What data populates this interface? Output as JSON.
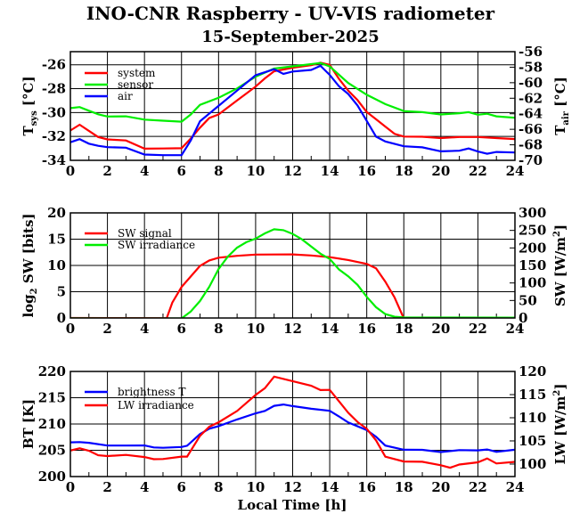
{
  "title": "INO-CNR Raspberry - UV-VIS radiometer",
  "subtitle": "15-September-2025",
  "chart_data": [
    {
      "type": "line",
      "ylabel_main": "T",
      "ylabel_sub": "sys",
      "ylabel_unit": " [°C]",
      "y2label_main": "T",
      "y2label_sub": "air",
      "y2label_unit": " [°C]",
      "xlim": [
        0,
        24
      ],
      "xticks": [
        0,
        2,
        4,
        6,
        8,
        10,
        12,
        14,
        16,
        18,
        20,
        22,
        24
      ],
      "ylim": [
        -34,
        -24.9
      ],
      "yticks": [
        -34,
        -32,
        -30,
        -28,
        -26
      ],
      "y2lim": [
        -70,
        -56
      ],
      "y2ticks": [
        -70,
        -68,
        -66,
        -64,
        -62,
        -60,
        -58,
        -56
      ],
      "series": [
        {
          "name": "system",
          "axis": "left",
          "color": "#ff0000",
          "x": [
            0,
            0.5,
            1,
            1.5,
            2,
            3,
            4,
            5,
            6,
            6.5,
            7,
            7.5,
            8,
            8.5,
            9,
            9.5,
            10,
            10.5,
            11,
            12,
            13,
            13.5,
            14,
            14.5,
            15,
            15.5,
            16,
            16.5,
            17,
            17.5,
            18,
            19,
            20,
            21,
            22,
            23,
            24
          ],
          "y": [
            -31.5,
            -31,
            -31.5,
            -32,
            -32.2,
            -32.3,
            -33,
            -33,
            -33,
            -32.2,
            -31.3,
            -30.5,
            -30.2,
            -29.6,
            -29,
            -28.4,
            -27.8,
            -27.1,
            -26.5,
            -26.2,
            -26,
            -25.8,
            -26,
            -27.2,
            -28.2,
            -29,
            -30,
            -30.6,
            -31.2,
            -31.8,
            -32,
            -32,
            -32.1,
            -32,
            -32,
            -32.1,
            -32.2
          ]
        },
        {
          "name": "sensor",
          "axis": "left",
          "color": "#00ee00",
          "x": [
            0,
            0.5,
            1,
            1.5,
            2,
            3,
            4,
            5,
            6,
            6.5,
            7,
            8,
            9,
            10,
            11,
            12,
            13,
            13.5,
            14,
            15,
            16,
            17,
            18,
            19,
            20,
            21,
            21.5,
            22,
            22.5,
            23,
            24
          ],
          "y": [
            -29.6,
            -29.5,
            -29.8,
            -30.1,
            -30.3,
            -30.3,
            -30.6,
            -30.7,
            -30.8,
            -30.2,
            -29.4,
            -28.8,
            -28,
            -27,
            -26.3,
            -26.1,
            -25.9,
            -25.8,
            -26.1,
            -27.5,
            -28.5,
            -29.3,
            -29.9,
            -30,
            -30.2,
            -30.1,
            -30.0,
            -30.2,
            -30.1,
            -30.3,
            -30.4
          ]
        },
        {
          "name": "air",
          "axis": "right",
          "color": "#0000ff",
          "x": [
            0,
            0.5,
            1,
            1.5,
            2,
            3,
            4,
            5,
            6,
            6.5,
            7,
            8,
            9,
            10,
            11,
            11.5,
            12,
            13,
            13.5,
            14,
            14.5,
            15,
            15.5,
            16,
            16.5,
            17,
            18,
            19,
            20,
            21,
            21.5,
            22,
            22.5,
            23,
            24
          ],
          "y": [
            -67.6,
            -67.2,
            -67.8,
            -68.1,
            -68.3,
            -68.4,
            -69.3,
            -69.4,
            -69.4,
            -67.5,
            -65,
            -63,
            -61,
            -59,
            -58.2,
            -58.8,
            -58.5,
            -58.3,
            -57.8,
            -59,
            -60.5,
            -61.5,
            -63,
            -65,
            -67,
            -67.6,
            -68.2,
            -68.3,
            -68.8,
            -68.7,
            -68.4,
            -68.8,
            -69.1,
            -68.9,
            -69
          ]
        }
      ]
    },
    {
      "type": "line",
      "ylabel_main": "log",
      "ylabel_sub": "2",
      "ylabel_unit": " SW [bits]",
      "y2label_main": "SW [W/m",
      "y2label_sup": "2",
      "y2label_unit": "]",
      "xlim": [
        0,
        24
      ],
      "xticks": [
        0,
        2,
        4,
        6,
        8,
        10,
        12,
        14,
        16,
        18,
        20,
        22,
        24
      ],
      "ylim": [
        0,
        20
      ],
      "yticks": [
        0,
        5,
        10,
        15,
        20
      ],
      "y2lim": [
        0,
        300
      ],
      "y2ticks": [
        0,
        50,
        100,
        150,
        200,
        250,
        300
      ],
      "series": [
        {
          "name": "SW signal",
          "axis": "left",
          "color": "#ff0000",
          "x": [
            0,
            5.2,
            5.5,
            6,
            6.5,
            7,
            7.5,
            8,
            9,
            10,
            11,
            12,
            13,
            14,
            15,
            16,
            16.5,
            17,
            17.5,
            18,
            24
          ],
          "y": [
            0,
            0,
            3,
            6,
            8,
            10,
            11,
            11.5,
            11.8,
            12,
            12,
            12,
            11.8,
            11.5,
            11,
            10.3,
            9.5,
            7,
            4,
            0,
            0
          ]
        },
        {
          "name": "SW irradiance",
          "axis": "right",
          "color": "#00ee00",
          "x": [
            0,
            6,
            6.5,
            7,
            7.5,
            8,
            8.5,
            9,
            9.5,
            10,
            10.5,
            11,
            11.5,
            12,
            12.5,
            13,
            13.5,
            14,
            14.5,
            15,
            15.5,
            16,
            16.5,
            17,
            17.5,
            18,
            24
          ],
          "y": [
            0,
            0,
            20,
            50,
            90,
            140,
            175,
            200,
            215,
            225,
            240,
            252,
            250,
            240,
            225,
            205,
            185,
            170,
            140,
            120,
            95,
            60,
            30,
            10,
            2,
            0,
            0
          ]
        }
      ]
    },
    {
      "type": "line",
      "ylabel_main": "BT [K]",
      "y2label_main": "LW [W/m",
      "y2label_sup": "2",
      "y2label_unit": "]",
      "xlabel": "Local Time [h]",
      "xlim": [
        0,
        24
      ],
      "xticks": [
        0,
        2,
        4,
        6,
        8,
        10,
        12,
        14,
        16,
        18,
        20,
        22,
        24
      ],
      "ylim": [
        200,
        220
      ],
      "yticks": [
        200,
        205,
        210,
        215,
        220
      ],
      "y2lim": [
        97.3,
        120
      ],
      "y2ticks": [
        100,
        105,
        110,
        115,
        120
      ],
      "series": [
        {
          "name": "brightness T",
          "axis": "left",
          "color": "#0000ff",
          "x": [
            0,
            0.5,
            1,
            2,
            3,
            4,
            4.5,
            5,
            6,
            6.3,
            7,
            7.5,
            8,
            9,
            10,
            10.5,
            11,
            11.5,
            12,
            13,
            14,
            14.5,
            15,
            16,
            16.5,
            17,
            18,
            19,
            20,
            21,
            22,
            22.5,
            23,
            24
          ],
          "y": [
            206.5,
            206.6,
            206.5,
            206,
            206,
            206,
            205.6,
            205.5,
            205.6,
            205.8,
            208,
            209,
            209.5,
            210.8,
            212,
            212.5,
            213.5,
            213.8,
            213.5,
            213,
            212.6,
            211.5,
            210.3,
            208.8,
            207.5,
            205.8,
            205,
            205,
            204.6,
            205,
            205,
            205.2,
            204.8,
            205.2
          ]
        },
        {
          "name": "LW irradiance",
          "axis": "right",
          "color": "#ff0000",
          "x": [
            0,
            0.5,
            1,
            1.5,
            2,
            3,
            4,
            4.5,
            5,
            6,
            6.3,
            7,
            7.5,
            8,
            9,
            10,
            10.5,
            11,
            12,
            13,
            13.5,
            14,
            15,
            15.5,
            16,
            16.5,
            17,
            18,
            19,
            20,
            20.5,
            21,
            22,
            22.5,
            23,
            24
          ],
          "y": [
            103,
            103.5,
            103,
            102,
            101.8,
            102,
            101.5,
            101,
            101,
            101.5,
            101.5,
            106,
            108,
            109,
            111.5,
            115,
            116.5,
            119,
            118,
            117,
            116,
            116,
            111,
            109,
            107.5,
            105,
            101.5,
            100.5,
            100.5,
            99.8,
            99.3,
            100,
            100.5,
            101.3,
            100.2,
            100.5
          ]
        }
      ]
    }
  ]
}
